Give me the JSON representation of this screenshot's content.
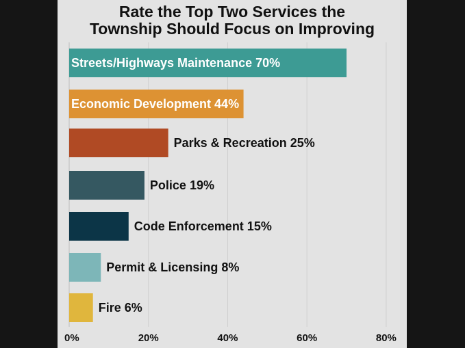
{
  "chart_data": {
    "type": "bar",
    "orientation": "horizontal",
    "title_lines": [
      "Rate the Top Two Services the",
      "Township Should Focus on Improving"
    ],
    "categories": [
      "Streets/Highways Maintenance 70%",
      "Economic Development 44%",
      "Parks & Recreation 25%",
      "Police 19%",
      "Code Enforcement 15%",
      "Permit & Licensing 8%",
      "Fire 6%"
    ],
    "values": [
      70,
      44,
      25,
      19,
      15,
      8,
      6
    ],
    "colors": [
      "#3d9b94",
      "#dd9233",
      "#b04a24",
      "#355861",
      "#0c3547",
      "#7db6b8",
      "#e0b63d"
    ],
    "label_inside": [
      true,
      true,
      false,
      false,
      false,
      false,
      false
    ],
    "x_ticks": [
      "0%",
      "20%",
      "40%",
      "60%",
      "80%"
    ],
    "xlim": [
      0,
      80
    ],
    "grid": true,
    "legend": "none"
  }
}
